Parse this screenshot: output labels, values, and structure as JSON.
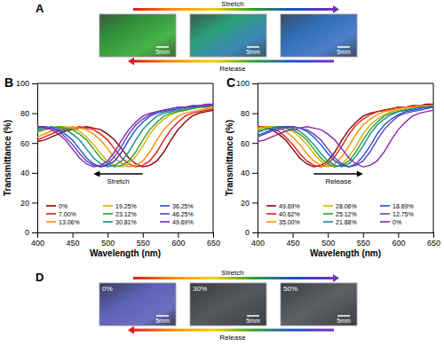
{
  "panel_a": {
    "label": "A",
    "stretch": "Stretch",
    "release": "Release",
    "scale_bars": [
      "5mm",
      "5mm",
      "5mm"
    ]
  },
  "chart_data": [
    {
      "type": "line",
      "panel_label": "B",
      "x_label": "Wavelength (nm)",
      "y_label": "Transmittance (%)",
      "annotation": "Stretch",
      "legend": "bottom",
      "grid": false,
      "xlim": [
        400,
        650
      ],
      "xticks": [
        400,
        450,
        500,
        550,
        600,
        650
      ],
      "ylim": [
        0,
        100
      ],
      "yticks": [
        0,
        20,
        40,
        60,
        80,
        100
      ],
      "x": [
        400,
        410,
        420,
        430,
        440,
        450,
        460,
        470,
        480,
        490,
        500,
        510,
        520,
        530,
        540,
        550,
        560,
        570,
        580,
        590,
        600,
        610,
        620,
        630,
        640,
        650
      ],
      "series": [
        {
          "name": "0%",
          "color": "#8b0000",
          "values": [
            61,
            62,
            64,
            66,
            68,
            69,
            70,
            71,
            70,
            69,
            66,
            62,
            56,
            50,
            46,
            44,
            45,
            48,
            54,
            62,
            69,
            74,
            78,
            80,
            81,
            82
          ]
        },
        {
          "name": "7.00%",
          "color": "#e3191c",
          "values": [
            62,
            64,
            66,
            68,
            69,
            70,
            71,
            70,
            69,
            66,
            62,
            56,
            50,
            46,
            44,
            45,
            48,
            54,
            62,
            69,
            74,
            78,
            80,
            81,
            82,
            83
          ]
        },
        {
          "name": "13.06%",
          "color": "#ff8c00",
          "values": [
            64,
            66,
            68,
            69,
            70,
            71,
            70,
            69,
            66,
            62,
            56,
            50,
            46,
            44,
            45,
            48,
            54,
            62,
            69,
            74,
            78,
            80,
            81,
            82,
            83,
            84
          ]
        },
        {
          "name": "19.25%",
          "color": "#d4b000",
          "values": [
            67,
            69,
            70,
            71,
            71,
            70,
            68,
            64,
            59,
            53,
            48,
            45,
            44,
            46,
            51,
            58,
            66,
            72,
            76,
            79,
            81,
            82,
            83,
            84,
            84,
            85
          ]
        },
        {
          "name": "23.12%",
          "color": "#2ca02c",
          "values": [
            68,
            69,
            70,
            71,
            70,
            69,
            66,
            62,
            56,
            50,
            46,
            44,
            45,
            48,
            54,
            62,
            69,
            74,
            78,
            80,
            81,
            82,
            83,
            84,
            84,
            85
          ]
        },
        {
          "name": "30.81%",
          "color": "#138a8a",
          "values": [
            69,
            70,
            71,
            70,
            69,
            66,
            62,
            56,
            50,
            46,
            44,
            45,
            48,
            54,
            62,
            69,
            74,
            78,
            80,
            81,
            82,
            83,
            84,
            84,
            85,
            85
          ]
        },
        {
          "name": "36.25%",
          "color": "#1f4fd1",
          "values": [
            70,
            71,
            70,
            69,
            66,
            62,
            56,
            50,
            46,
            44,
            45,
            48,
            54,
            62,
            69,
            74,
            78,
            80,
            81,
            82,
            83,
            84,
            84,
            85,
            85,
            86
          ]
        },
        {
          "name": "46.25%",
          "color": "#5a3fc0",
          "values": [
            71,
            71,
            70,
            68,
            64,
            59,
            53,
            48,
            45,
            44,
            46,
            51,
            58,
            66,
            72,
            76,
            79,
            81,
            82,
            83,
            84,
            84,
            85,
            85,
            85,
            86
          ]
        },
        {
          "name": "49.69%",
          "color": "#8e24aa",
          "values": [
            71,
            70,
            69,
            66,
            62,
            56,
            50,
            46,
            44,
            45,
            48,
            54,
            62,
            69,
            74,
            78,
            80,
            81,
            82,
            83,
            84,
            84,
            85,
            85,
            86,
            86
          ]
        }
      ]
    },
    {
      "type": "line",
      "panel_label": "C",
      "x_label": "Wavelength (nm)",
      "y_label": "Transmittance (%)",
      "annotation": "Release",
      "legend": "bottom",
      "grid": false,
      "xlim": [
        400,
        650
      ],
      "xticks": [
        400,
        450,
        500,
        550,
        600,
        650
      ],
      "ylim": [
        0,
        100
      ],
      "yticks": [
        0,
        20,
        40,
        60,
        80,
        100
      ],
      "x": [
        400,
        410,
        420,
        430,
        440,
        450,
        460,
        470,
        480,
        490,
        500,
        510,
        520,
        530,
        540,
        550,
        560,
        570,
        580,
        590,
        600,
        610,
        620,
        630,
        640,
        650
      ],
      "series": [
        {
          "name": "49.69%",
          "color": "#8b0000",
          "values": [
            71,
            70,
            69,
            66,
            62,
            56,
            50,
            46,
            44,
            45,
            48,
            54,
            62,
            69,
            74,
            78,
            80,
            81,
            82,
            83,
            84,
            84,
            85,
            85,
            86,
            86
          ]
        },
        {
          "name": "40.62%",
          "color": "#e3191c",
          "values": [
            71,
            71,
            70,
            68,
            64,
            59,
            53,
            48,
            45,
            44,
            46,
            51,
            58,
            66,
            72,
            76,
            79,
            81,
            82,
            83,
            84,
            84,
            85,
            85,
            85,
            86
          ]
        },
        {
          "name": "35.00%",
          "color": "#ff8c00",
          "values": [
            70,
            71,
            71,
            70,
            68,
            64,
            59,
            53,
            48,
            45,
            44,
            46,
            51,
            58,
            66,
            72,
            76,
            79,
            81,
            82,
            83,
            84,
            84,
            85,
            85,
            85
          ]
        },
        {
          "name": "28.06%",
          "color": "#d4b000",
          "values": [
            69,
            70,
            71,
            71,
            70,
            68,
            64,
            59,
            53,
            48,
            45,
            44,
            46,
            51,
            58,
            66,
            72,
            76,
            79,
            81,
            82,
            83,
            84,
            84,
            85,
            85
          ]
        },
        {
          "name": "25.12%",
          "color": "#2ca02c",
          "values": [
            68,
            69,
            70,
            71,
            70,
            69,
            66,
            62,
            56,
            50,
            46,
            44,
            45,
            48,
            54,
            62,
            69,
            74,
            78,
            80,
            81,
            82,
            83,
            84,
            84,
            85
          ]
        },
        {
          "name": "21.88%",
          "color": "#138a8a",
          "values": [
            67,
            69,
            70,
            71,
            71,
            70,
            68,
            64,
            59,
            53,
            48,
            45,
            44,
            46,
            51,
            58,
            66,
            72,
            76,
            79,
            81,
            82,
            83,
            84,
            84,
            85
          ]
        },
        {
          "name": "18.69%",
          "color": "#1f4fd1",
          "values": [
            65,
            67,
            69,
            70,
            71,
            71,
            70,
            68,
            64,
            59,
            53,
            48,
            45,
            44,
            46,
            51,
            58,
            66,
            72,
            76,
            79,
            81,
            82,
            83,
            84,
            84
          ]
        },
        {
          "name": "12.75%",
          "color": "#5a3fc0",
          "values": [
            64,
            66,
            68,
            69,
            70,
            71,
            70,
            69,
            66,
            62,
            56,
            50,
            46,
            44,
            45,
            48,
            54,
            62,
            69,
            74,
            78,
            80,
            81,
            82,
            83,
            84
          ]
        },
        {
          "name": "0%",
          "color": "#8e24aa",
          "values": [
            61,
            62,
            64,
            66,
            68,
            69,
            70,
            71,
            70,
            69,
            66,
            62,
            56,
            50,
            46,
            44,
            45,
            48,
            54,
            62,
            69,
            74,
            78,
            80,
            81,
            82
          ]
        }
      ]
    }
  ],
  "panel_d": {
    "label": "D",
    "stretch": "Stretch",
    "release": "Release",
    "strains": [
      "0%",
      "30%",
      "50%"
    ],
    "scale_bars": [
      "5mm",
      "5mm",
      "5mm"
    ]
  }
}
